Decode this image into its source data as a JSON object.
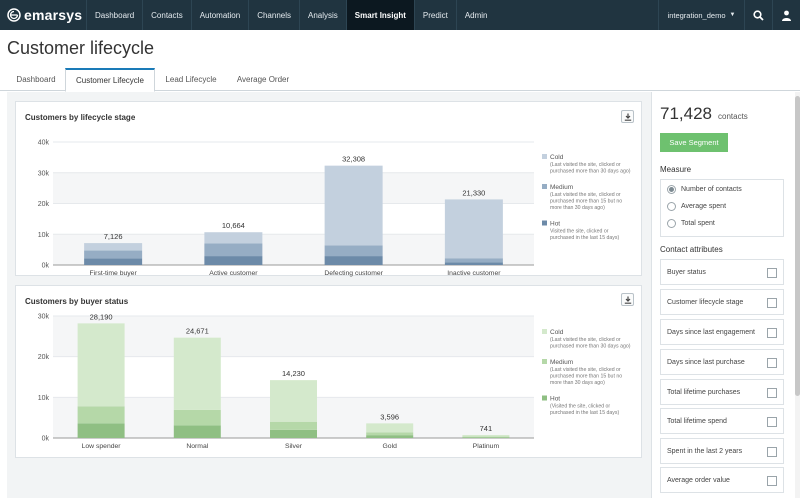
{
  "nav": {
    "logo": "emarsys",
    "items": [
      "Dashboard",
      "Contacts",
      "Automation",
      "Channels",
      "Analysis",
      "Smart Insight",
      "Predict",
      "Admin"
    ],
    "active": "Smart Insight",
    "user": "integration_demo"
  },
  "page": {
    "title": "Customer lifecycle"
  },
  "tabs": [
    "Dashboard",
    "Customer Lifecycle",
    "Lead Lifecycle",
    "Average Order"
  ],
  "active_tab": "Customer Lifecycle",
  "sidebar": {
    "contacts_count": "71,428",
    "contacts_label": "contacts",
    "save_label": "Save Segment",
    "measure_label": "Measure",
    "measure_options": [
      "Number of contacts",
      "Average spent",
      "Total spent"
    ],
    "selected_measure": "Number of contacts",
    "attributes_label": "Contact attributes",
    "attributes": [
      "Buyer status",
      "Customer lifecycle stage",
      "Days since last engagement",
      "Days since last purchase",
      "Total lifetime purchases",
      "Total lifetime spend",
      "Spent in the last 2 years",
      "Average order value"
    ]
  },
  "chart_data": [
    {
      "type": "bar",
      "stacked": true,
      "title": "Customers by lifecycle stage",
      "categories": [
        "First-time buyer",
        "Active customer",
        "Defecting customer",
        "Inactive customer"
      ],
      "totals": [
        7126,
        10664,
        32308,
        21330
      ],
      "total_labels": [
        "7,126",
        "10,664",
        "32,308",
        "21,330"
      ],
      "series": [
        {
          "name": "Hot",
          "desc": [
            "Visited the site, clicked or",
            "purchased in the last 15 days)"
          ],
          "values": [
            2100,
            2900,
            2900,
            900
          ],
          "color": "#6c8aa8"
        },
        {
          "name": "Medium",
          "desc": [
            "(Last visited the site, clicked or",
            "purchased more than 15 but no",
            "more than 30 days ago)"
          ],
          "values": [
            2600,
            4100,
            3500,
            1300
          ],
          "color": "#96adc4"
        },
        {
          "name": "Cold",
          "desc": [
            "(Last visited the site, clicked or",
            "purchased more than 30 days ago)"
          ],
          "values": [
            2426,
            3664,
            25908,
            19130
          ],
          "color": "#c3d0de"
        }
      ],
      "ylim": [
        0,
        40000
      ],
      "yticks": [
        0,
        10000,
        20000,
        30000,
        40000
      ],
      "ytick_labels": [
        "0k",
        "10k",
        "20k",
        "30k",
        "40k"
      ],
      "legend": "right"
    },
    {
      "type": "bar",
      "stacked": true,
      "title": "Customers by buyer status",
      "categories": [
        "Low spender",
        "Normal",
        "Silver",
        "Gold",
        "Platinum"
      ],
      "totals": [
        28190,
        24671,
        14230,
        3596,
        741
      ],
      "total_labels": [
        "28,190",
        "24,671",
        "14,230",
        "3,596",
        "741"
      ],
      "series": [
        {
          "name": "Hot",
          "desc": [
            "(Visited the site, clicked or",
            "purchased in the last 15 days)"
          ],
          "values": [
            3600,
            3100,
            2000,
            700,
            200
          ],
          "color": "#8fbf83"
        },
        {
          "name": "Medium",
          "desc": [
            "(Last visited the site, clicked or",
            "purchased more than 15 but no",
            "more than 30 days ago)"
          ],
          "values": [
            4200,
            3800,
            2000,
            700,
            150
          ],
          "color": "#b5d8a8"
        },
        {
          "name": "Cold",
          "desc": [
            "(Last visited the site, clicked or",
            "purchased more than 30 days ago)"
          ],
          "values": [
            20390,
            17771,
            10230,
            2196,
            391
          ],
          "color": "#d4e9cc"
        }
      ],
      "ylim": [
        0,
        30000
      ],
      "yticks": [
        0,
        10000,
        20000,
        30000
      ],
      "ytick_labels": [
        "0k",
        "10k",
        "20k",
        "30k"
      ],
      "legend": "right"
    }
  ]
}
